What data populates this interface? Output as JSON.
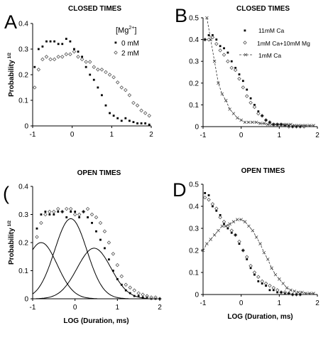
{
  "chart_data": [
    {
      "id": "A",
      "type": "scatter",
      "panel_letter": "A",
      "title": "CLOSED TIMES",
      "ylabel": "Probability",
      "ylabel_sup": "1/2",
      "xlabel": "",
      "xlim": [
        -1,
        2
      ],
      "ylim": [
        0,
        0.4
      ],
      "xticks": [
        -1,
        0,
        1,
        2
      ],
      "yticks": [
        0,
        0.1,
        0.2,
        0.3,
        0.4
      ],
      "legend_title": "[Mg",
      "legend_title_sup": "2+",
      "legend_title_end": "]",
      "series": [
        {
          "name": "0 mM",
          "marker": "dot",
          "x": [
            -0.95,
            -0.85,
            -0.75,
            -0.65,
            -0.55,
            -0.45,
            -0.35,
            -0.25,
            -0.15,
            -0.05,
            0.05,
            0.15,
            0.25,
            0.35,
            0.45,
            0.55,
            0.65,
            0.75,
            0.85,
            0.95,
            1.05,
            1.15,
            1.25,
            1.35,
            1.45,
            1.55,
            1.65,
            1.75,
            1.85,
            1.95
          ],
          "y": [
            0.23,
            0.3,
            0.31,
            0.33,
            0.33,
            0.33,
            0.32,
            0.32,
            0.34,
            0.33,
            0.3,
            0.29,
            0.27,
            0.23,
            0.2,
            0.18,
            0.15,
            0.12,
            0.08,
            0.05,
            0.04,
            0.03,
            0.02,
            0.03,
            0.02,
            0.015,
            0.01,
            0.01,
            0.01,
            0.005
          ]
        },
        {
          "name": "2 mM",
          "marker": "diamond",
          "x": [
            -0.95,
            -0.85,
            -0.75,
            -0.65,
            -0.55,
            -0.45,
            -0.35,
            -0.25,
            -0.15,
            -0.05,
            0.05,
            0.15,
            0.25,
            0.35,
            0.45,
            0.55,
            0.65,
            0.75,
            0.85,
            0.95,
            1.05,
            1.15,
            1.25,
            1.35,
            1.45,
            1.55,
            1.65,
            1.75,
            1.85,
            1.95
          ],
          "y": [
            0.15,
            0.22,
            0.26,
            0.27,
            0.26,
            0.26,
            0.27,
            0.27,
            0.28,
            0.28,
            0.29,
            0.27,
            0.26,
            0.25,
            0.25,
            0.23,
            0.22,
            0.22,
            0.21,
            0.2,
            0.19,
            0.17,
            0.15,
            0.14,
            0.12,
            0.09,
            0.08,
            0.06,
            0.05,
            0.04
          ]
        }
      ]
    },
    {
      "id": "B",
      "type": "scatter",
      "panel_letter": "B",
      "title": "CLOSED TIMES",
      "ylabel": "",
      "xlabel": "",
      "xlim": [
        -1,
        2
      ],
      "ylim": [
        0,
        0.5
      ],
      "xticks": [
        -1,
        0,
        1,
        2
      ],
      "yticks": [
        0,
        0.1,
        0.2,
        0.3,
        0.4,
        0.5
      ],
      "series": [
        {
          "name": "11mM Ca",
          "marker": "dot",
          "x": [
            -0.95,
            -0.85,
            -0.75,
            -0.65,
            -0.55,
            -0.45,
            -0.35,
            -0.25,
            -0.15,
            -0.05,
            0.05,
            0.15,
            0.25,
            0.35,
            0.45,
            0.55,
            0.65,
            0.75,
            0.85,
            0.95,
            1.05,
            1.15,
            1.25,
            1.35,
            1.45,
            1.55
          ],
          "y": [
            0.4,
            0.42,
            0.42,
            0.4,
            0.37,
            0.36,
            0.34,
            0.3,
            0.27,
            0.24,
            0.21,
            0.17,
            0.13,
            0.1,
            0.07,
            0.05,
            0.03,
            0.02,
            0.01,
            0.01,
            0.01,
            0.005,
            0.005,
            0.0,
            0.0,
            0.0
          ]
        },
        {
          "name": "1mM Ca+10mM Mg",
          "marker": "diamond",
          "x": [
            -0.95,
            -0.85,
            -0.75,
            -0.65,
            -0.55,
            -0.45,
            -0.35,
            -0.25,
            -0.15,
            -0.05,
            0.05,
            0.15,
            0.25,
            0.35,
            0.45,
            0.55,
            0.65,
            0.75,
            0.85,
            0.95,
            1.05,
            1.15,
            1.25,
            1.35,
            1.45,
            1.55,
            1.65
          ],
          "y": [
            0.4,
            0.4,
            0.41,
            0.38,
            0.35,
            0.33,
            0.3,
            0.27,
            0.26,
            0.22,
            0.18,
            0.14,
            0.11,
            0.09,
            0.06,
            0.05,
            0.03,
            0.02,
            0.01,
            0.01,
            0.01,
            0.005,
            0.0,
            0.0,
            0.0,
            0.0,
            0.0
          ]
        },
        {
          "name": "1mM Ca",
          "marker": "cross-line",
          "x": [
            -0.9,
            -0.8,
            -0.7,
            -0.6,
            -0.5,
            -0.4,
            -0.3,
            -0.2,
            -0.1,
            0.0,
            0.1,
            0.2,
            0.3,
            0.4,
            0.5,
            0.6,
            0.7,
            0.8,
            0.9,
            1.0,
            1.1,
            1.2,
            1.3,
            1.4,
            1.5,
            1.6,
            1.7,
            1.8,
            1.9
          ],
          "y": [
            0.51,
            0.4,
            0.3,
            0.2,
            0.15,
            0.12,
            0.08,
            0.06,
            0.04,
            0.03,
            0.02,
            0.02,
            0.02,
            0.02,
            0.015,
            0.015,
            0.01,
            0.01,
            0.01,
            0.01,
            0.01,
            0.01,
            0.01,
            0.005,
            0.005,
            0.005,
            0.005,
            0.005,
            0.005
          ]
        }
      ]
    },
    {
      "id": "C",
      "type": "scatter",
      "panel_letter": "(",
      "title": "OPEN TIMES",
      "ylabel": "Probability",
      "ylabel_sup": "1/2",
      "xlabel": "LOG (Duration, ms)",
      "xlim": [
        -1,
        2
      ],
      "ylim": [
        0,
        0.4
      ],
      "xticks": [
        -1,
        0,
        1,
        2
      ],
      "yticks": [
        0,
        0.1,
        0.2,
        0.3,
        0.4
      ],
      "series": [
        {
          "marker": "dot",
          "x": [
            -0.9,
            -0.8,
            -0.7,
            -0.6,
            -0.5,
            -0.4,
            -0.3,
            -0.2,
            -0.1,
            0.0,
            0.1,
            0.2,
            0.3,
            0.4,
            0.5,
            0.6,
            0.7,
            0.8,
            0.9,
            1.0,
            1.1,
            1.2,
            1.3,
            1.4,
            1.5,
            1.6,
            1.7,
            1.8,
            1.9,
            2.0
          ],
          "y": [
            0.25,
            0.3,
            0.31,
            0.3,
            0.3,
            0.31,
            0.31,
            0.29,
            0.31,
            0.31,
            0.29,
            0.31,
            0.29,
            0.27,
            0.24,
            0.21,
            0.18,
            0.14,
            0.1,
            0.07,
            0.05,
            0.03,
            0.02,
            0.01,
            0.01,
            0.005,
            0.005,
            0.0,
            0.0,
            0.0
          ]
        },
        {
          "marker": "diamond",
          "x": [
            -0.9,
            -0.8,
            -0.7,
            -0.6,
            -0.5,
            -0.4,
            -0.3,
            -0.2,
            -0.1,
            0.0,
            0.1,
            0.2,
            0.3,
            0.4,
            0.5,
            0.6,
            0.7,
            0.8,
            0.9,
            1.0,
            1.1,
            1.2,
            1.3,
            1.4,
            1.5,
            1.6,
            1.7,
            1.8,
            1.9,
            2.0
          ],
          "y": [
            0.22,
            0.27,
            0.3,
            0.31,
            0.31,
            0.32,
            0.31,
            0.32,
            0.32,
            0.3,
            0.3,
            0.31,
            0.32,
            0.3,
            0.29,
            0.27,
            0.24,
            0.2,
            0.16,
            0.12,
            0.08,
            0.05,
            0.04,
            0.03,
            0.02,
            0.015,
            0.01,
            0.005,
            0.005,
            0.0
          ]
        },
        {
          "marker": "line",
          "mu": -0.8,
          "sigma": 0.38,
          "amp": 0.2
        },
        {
          "marker": "line",
          "mu": -0.1,
          "sigma": 0.38,
          "amp": 0.285
        },
        {
          "marker": "line",
          "mu": 0.45,
          "sigma": 0.4,
          "amp": 0.18
        }
      ]
    },
    {
      "id": "D",
      "type": "scatter",
      "panel_letter": "D",
      "title": "OPEN TIMES",
      "ylabel": "",
      "xlabel": "LOG (Duration,  ms)",
      "xlim": [
        -1,
        2
      ],
      "ylim": [
        0,
        0.5
      ],
      "xticks": [
        -1,
        0,
        1,
        2
      ],
      "yticks": [
        0,
        0.1,
        0.2,
        0.3,
        0.4,
        0.5
      ],
      "series": [
        {
          "marker": "dot",
          "x": [
            -0.95,
            -0.85,
            -0.75,
            -0.65,
            -0.55,
            -0.45,
            -0.35,
            -0.25,
            -0.15,
            -0.05,
            0.05,
            0.15,
            0.25,
            0.35,
            0.45,
            0.55,
            0.65,
            0.75,
            0.85,
            0.95,
            1.05,
            1.15,
            1.25,
            1.35,
            1.45,
            1.55
          ],
          "y": [
            0.46,
            0.45,
            0.4,
            0.38,
            0.36,
            0.32,
            0.3,
            0.28,
            0.27,
            0.23,
            0.2,
            0.16,
            0.12,
            0.09,
            0.06,
            0.05,
            0.04,
            0.02,
            0.02,
            0.01,
            0.01,
            0.005,
            0.005,
            0.0,
            0.0,
            0.0
          ]
        },
        {
          "marker": "diamond",
          "x": [
            -0.95,
            -0.85,
            -0.75,
            -0.65,
            -0.55,
            -0.45,
            -0.35,
            -0.25,
            -0.15,
            -0.05,
            0.05,
            0.15,
            0.25,
            0.35,
            0.45,
            0.55,
            0.65,
            0.75,
            0.85,
            0.95,
            1.05,
            1.15,
            1.25,
            1.35,
            1.45,
            1.55
          ],
          "y": [
            0.44,
            0.43,
            0.41,
            0.39,
            0.35,
            0.33,
            0.31,
            0.29,
            0.27,
            0.24,
            0.2,
            0.17,
            0.13,
            0.1,
            0.08,
            0.06,
            0.05,
            0.04,
            0.03,
            0.02,
            0.01,
            0.01,
            0.005,
            0.0,
            0.0,
            0.0
          ]
        },
        {
          "marker": "cross-line",
          "x": [
            -1.0,
            -0.9,
            -0.8,
            -0.7,
            -0.6,
            -0.5,
            -0.4,
            -0.3,
            -0.2,
            -0.1,
            0.0,
            0.1,
            0.2,
            0.3,
            0.4,
            0.5,
            0.6,
            0.7,
            0.8,
            0.9,
            1.0,
            1.1,
            1.2,
            1.3,
            1.4,
            1.5,
            1.6,
            1.7,
            1.8,
            1.9
          ],
          "y": [
            0.2,
            0.23,
            0.25,
            0.27,
            0.29,
            0.31,
            0.31,
            0.32,
            0.33,
            0.34,
            0.34,
            0.33,
            0.31,
            0.29,
            0.26,
            0.23,
            0.19,
            0.16,
            0.12,
            0.09,
            0.07,
            0.05,
            0.03,
            0.02,
            0.015,
            0.01,
            0.01,
            0.005,
            0.005,
            0.005
          ]
        }
      ]
    }
  ],
  "legends": {
    "A": [
      "0 mM",
      "2 mM"
    ],
    "B": [
      "11mM Ca",
      "1mM Ca+10mM Mg",
      "1mM Ca"
    ]
  }
}
